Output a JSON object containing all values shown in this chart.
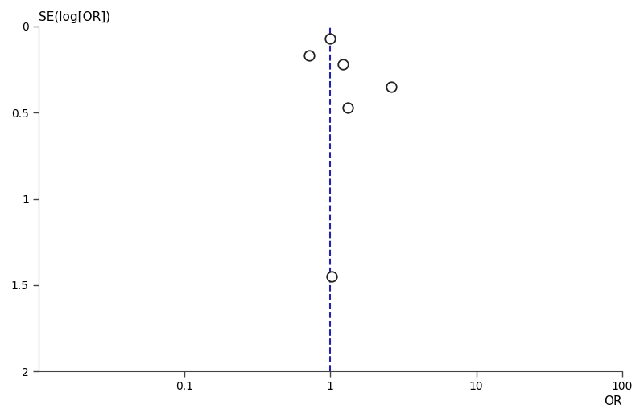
{
  "points_or": [
    0.72,
    1.0,
    1.22,
    1.32,
    2.6,
    1.02
  ],
  "points_se": [
    0.17,
    0.07,
    0.22,
    0.47,
    0.35,
    1.45
  ],
  "vline_x": 1.0,
  "xlim_log": [
    0.01,
    100
  ],
  "ylim": [
    2.0,
    0.0
  ],
  "xlabel": "OR",
  "ylabel": "SE(log[OR])",
  "yticks": [
    0,
    0.5,
    1,
    1.5,
    2
  ],
  "xticks": [
    0.1,
    1,
    10,
    100
  ],
  "xtick_labels": [
    "0.1",
    "1",
    "10",
    "100"
  ],
  "marker_color": "white",
  "marker_edge_color": "#222222",
  "marker_size": 9,
  "vline_color": "#2222aa",
  "background_color": "#ffffff",
  "axis_color": "#444444",
  "label_fontsize": 11,
  "tick_fontsize": 10
}
